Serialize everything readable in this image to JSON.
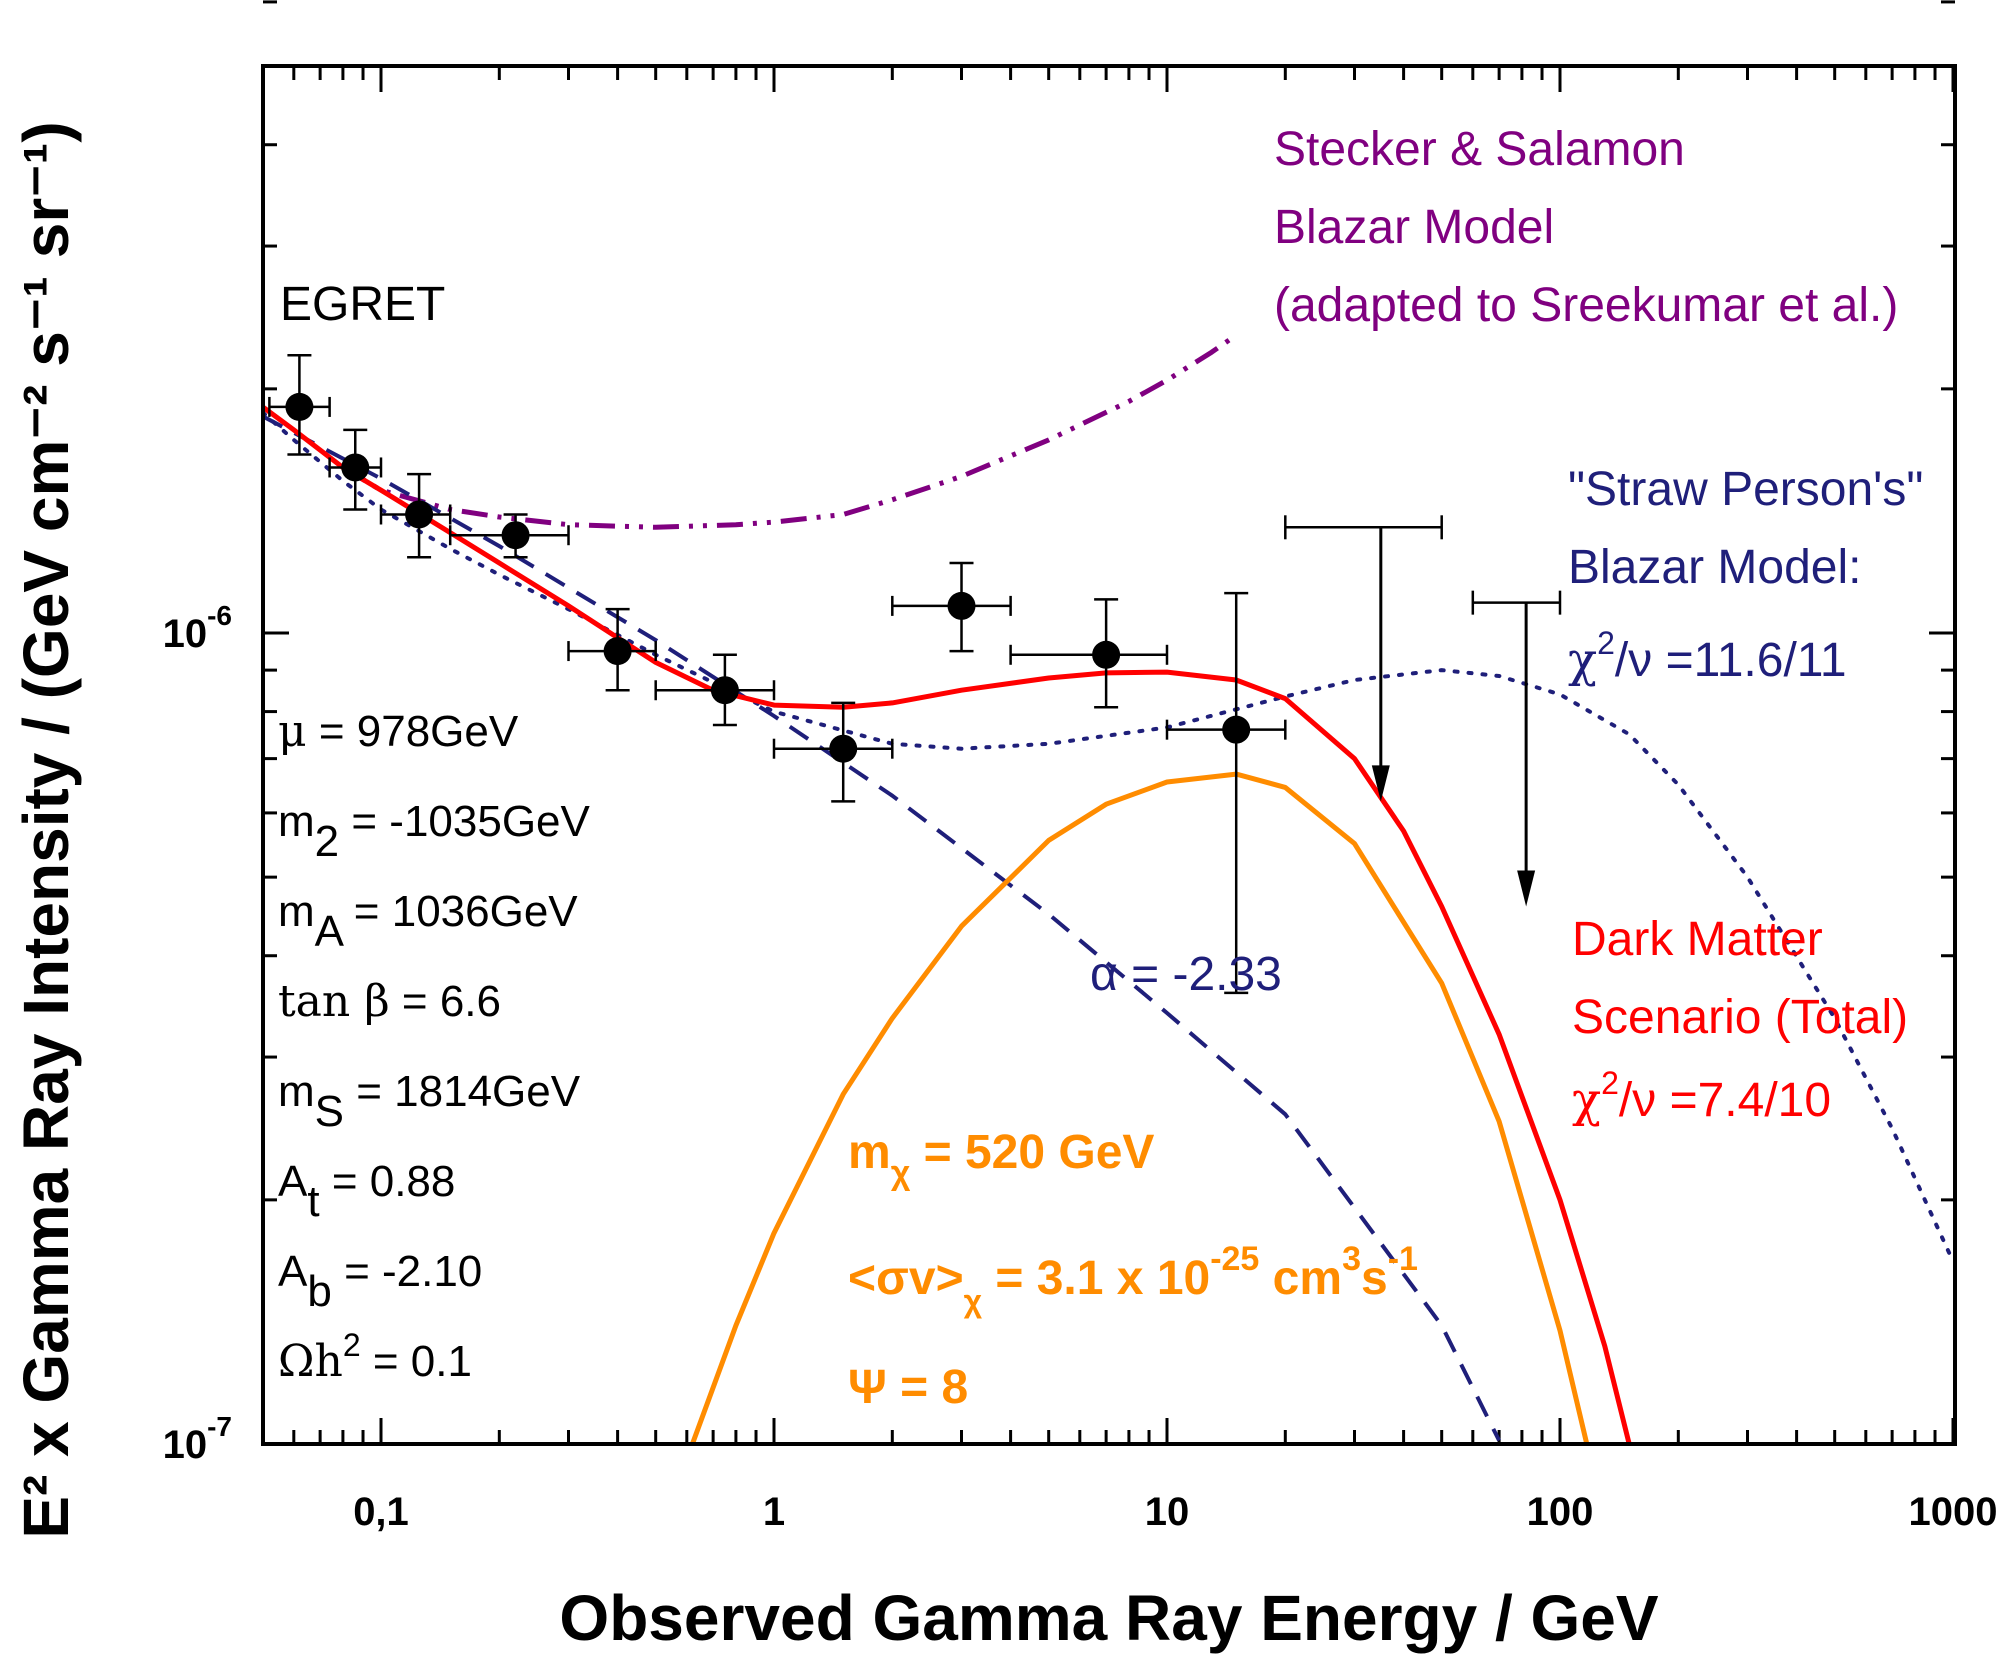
{
  "chart_data": {
    "type": "line",
    "xlabel": "Observed Gamma Ray Energy / GeV",
    "ylabel": "E² x Gamma Ray Intensity  /  (GeV cm⁻² s⁻¹ sr⁻¹)",
    "x_scale": "log",
    "y_scale": "log",
    "xlim": [
      0.05,
      1000
    ],
    "ylim": [
      1e-07,
      7e-06
    ],
    "x_tick_labels": [
      {
        "value": 0.1,
        "label": "0,1"
      },
      {
        "value": 1,
        "label": "1"
      },
      {
        "value": 10,
        "label": "10"
      },
      {
        "value": 100,
        "label": "100"
      },
      {
        "value": 1000,
        "label": "1000"
      }
    ],
    "y_tick_labels": [
      {
        "value": 1e-07,
        "base": "10",
        "exp": "-7"
      },
      {
        "value": 1e-06,
        "base": "10",
        "exp": "-6"
      }
    ],
    "series": [
      {
        "name": "EGRET",
        "kind": "points",
        "color": "#000000",
        "points": [
          {
            "x": 0.062,
            "y": 1.9e-06,
            "xlo": 0.052,
            "xhi": 0.074,
            "ylo": 1.66e-06,
            "yhi": 2.2e-06
          },
          {
            "x": 0.086,
            "y": 1.6e-06,
            "xlo": 0.074,
            "xhi": 0.1,
            "ylo": 1.42e-06,
            "yhi": 1.78e-06
          },
          {
            "x": 0.125,
            "y": 1.4e-06,
            "xlo": 0.1,
            "xhi": 0.15,
            "ylo": 1.24e-06,
            "yhi": 1.57e-06
          },
          {
            "x": 0.22,
            "y": 1.32e-06,
            "xlo": 0.15,
            "xhi": 0.3,
            "ylo": 1.24e-06,
            "yhi": 1.4e-06
          },
          {
            "x": 0.4,
            "y": 9.5e-07,
            "xlo": 0.3,
            "xhi": 0.5,
            "ylo": 8.5e-07,
            "yhi": 1.07e-06
          },
          {
            "x": 0.75,
            "y": 8.5e-07,
            "xlo": 0.5,
            "xhi": 1.0,
            "ylo": 7.7e-07,
            "yhi": 9.4e-07
          },
          {
            "x": 1.5,
            "y": 7.2e-07,
            "xlo": 1.0,
            "xhi": 2.0,
            "ylo": 6.2e-07,
            "yhi": 8.2e-07
          },
          {
            "x": 3.0,
            "y": 1.08e-06,
            "xlo": 2.0,
            "xhi": 4.0,
            "ylo": 9.5e-07,
            "yhi": 1.22e-06
          },
          {
            "x": 7.0,
            "y": 9.4e-07,
            "xlo": 4.0,
            "xhi": 10.0,
            "ylo": 8.1e-07,
            "yhi": 1.1e-06
          },
          {
            "x": 15.0,
            "y": 7.6e-07,
            "xlo": 10.0,
            "xhi": 20.0,
            "ylo": 3.6e-07,
            "yhi": 1.12e-06
          }
        ],
        "upper_limits": [
          {
            "x": 35.0,
            "y": 1.35e-06,
            "xlo": 20.0,
            "xhi": 50.0,
            "arrow_to": 6.2e-07
          },
          {
            "x": 82.0,
            "y": 1.09e-06,
            "xlo": 60.0,
            "xhi": 100.0,
            "arrow_to": 4.6e-07
          }
        ]
      },
      {
        "name": "Stecker & Salamon Blazar Model",
        "kind": "line",
        "style": "dash-dot-dot",
        "color": "#800080",
        "x": [
          0.08,
          0.1,
          0.15,
          0.2,
          0.3,
          0.5,
          0.8,
          1.0,
          1.5,
          2.0,
          3.0,
          5.0,
          8.0,
          10.0,
          13.0,
          15.0
        ],
        "y": [
          1.6e-06,
          1.5e-06,
          1.42e-06,
          1.39e-06,
          1.36e-06,
          1.35e-06,
          1.36e-06,
          1.37e-06,
          1.4e-06,
          1.46e-06,
          1.56e-06,
          1.73e-06,
          1.93e-06,
          2.05e-06,
          2.22e-06,
          2.33e-06
        ]
      },
      {
        "name": "\"Straw Person's\" Blazar Model",
        "kind": "line",
        "style": "dotted",
        "color": "#1f1f7a",
        "x": [
          0.05,
          0.06,
          0.08,
          0.1,
          0.15,
          0.2,
          0.3,
          0.5,
          1.0,
          2.0,
          3.0,
          5.0,
          10.0,
          20.0,
          30.0,
          50.0,
          70.0,
          100.0,
          150.0,
          200.0,
          300.0,
          500.0,
          700.0,
          1000.0
        ],
        "y": [
          1.87e-06,
          1.73e-06,
          1.54e-06,
          1.42e-06,
          1.27e-06,
          1.18e-06,
          1.07e-06,
          9.4e-07,
          8e-07,
          7.3e-07,
          7.2e-07,
          7.3e-07,
          7.65e-07,
          8.35e-07,
          8.75e-07,
          9e-07,
          8.85e-07,
          8.4e-07,
          7.5e-07,
          6.5e-07,
          5e-07,
          3.35e-07,
          2.45e-07,
          1.68e-07
        ]
      },
      {
        "name": "α = -2.33",
        "kind": "line",
        "style": "dashed",
        "color": "#1f1f7a",
        "x": [
          0.05,
          0.1,
          0.2,
          0.5,
          1.0,
          2.0,
          5.0,
          10.0,
          20.0,
          50.0,
          70.0
        ],
        "y": [
          1.85e-06,
          1.55e-06,
          1.28e-06,
          9.8e-07,
          7.9e-07,
          6.3e-07,
          4.5e-07,
          3.4e-07,
          2.55e-07,
          1.4e-07,
          1.01e-07
        ]
      },
      {
        "name": "Dark Matter (mχ = 520 GeV)",
        "kind": "line",
        "style": "solid",
        "color": "#ff8c00",
        "x": [
          0.62,
          0.8,
          1.0,
          1.5,
          2.0,
          3.0,
          5.0,
          7.0,
          10.0,
          15.0,
          20.0,
          30.0,
          50.0,
          70.0,
          100.0,
          117.0
        ],
        "y": [
          1e-07,
          1.4e-07,
          1.82e-07,
          2.7e-07,
          3.35e-07,
          4.35e-07,
          5.55e-07,
          6.15e-07,
          6.55e-07,
          6.7e-07,
          6.45e-07,
          5.5e-07,
          3.7e-07,
          2.5e-07,
          1.38e-07,
          1e-07
        ]
      },
      {
        "name": "Dark Matter Scenario (Total)",
        "kind": "line",
        "style": "solid",
        "color": "#ff0000",
        "x": [
          0.05,
          0.06,
          0.08,
          0.1,
          0.15,
          0.2,
          0.3,
          0.5,
          0.7,
          1.0,
          1.5,
          2.0,
          3.0,
          5.0,
          7.0,
          10.0,
          15.0,
          20.0,
          30.0,
          40.0,
          50.0,
          70.0,
          100.0,
          130.0,
          150.0
        ],
        "y": [
          1.9e-06,
          1.78e-06,
          1.6e-06,
          1.5e-06,
          1.33e-06,
          1.22e-06,
          1.08e-06,
          9.2e-07,
          8.5e-07,
          8.15e-07,
          8.1e-07,
          8.2e-07,
          8.5e-07,
          8.8e-07,
          8.93e-07,
          8.95e-07,
          8.75e-07,
          8.3e-07,
          7e-07,
          5.7e-07,
          4.6e-07,
          3.2e-07,
          2e-07,
          1.32e-07,
          1e-07
        ]
      }
    ],
    "annotations": {
      "egret": "EGRET",
      "stecker_1": "Stecker & Salamon",
      "stecker_2": "Blazar Model",
      "stecker_3": "(adapted to Sreekumar et al.)",
      "straw_1": "\"Straw Person's\"",
      "straw_2": "Blazar Model:",
      "straw_chi_sym": "χ",
      "straw_chi_exp": "2",
      "straw_chi_rest": "/ν =11.6/11",
      "dm_1": "Dark Matter",
      "dm_2": "Scenario (Total)",
      "dm_chi_sym": "χ",
      "dm_chi_exp": "2",
      "dm_chi_rest": "/ν =7.4/10",
      "alpha": "α = -2.33",
      "mchi_m": "m",
      "mchi_sub": "χ",
      "mchi_rest": " = 520 GeV",
      "sigmav_a": "<σv>",
      "sigmav_sub": "χ",
      "sigmav_b": " = 3.1 x 10",
      "sigmav_exp1": "-25",
      "sigmav_c": " cm",
      "sigmav_exp2": "3",
      "sigmav_d": "s",
      "sigmav_exp3": "-1",
      "psi": "Ψ = 8"
    },
    "parameters": [
      {
        "sym": "μ",
        "sub": "",
        "sup": "",
        "rest": " = 978GeV"
      },
      {
        "sym": "m",
        "sub": "2",
        "sup": "",
        "rest": " = -1035GeV"
      },
      {
        "sym": "m",
        "sub": "A",
        "sup": "",
        "rest": " = 1036GeV"
      },
      {
        "sym": "tan β",
        "sub": "",
        "sup": "",
        "rest": " = 6.6"
      },
      {
        "sym": "m",
        "sub": "S",
        "sup": "",
        "rest": " = 1814GeV"
      },
      {
        "sym": "A",
        "sub": "t",
        "sup": "",
        "rest": " = 0.88"
      },
      {
        "sym": "A",
        "sub": "b",
        "sup": "",
        "rest": " = -2.10"
      },
      {
        "sym": "Ωh",
        "sub": "",
        "sup": "2",
        "rest": " = 0.1"
      }
    ]
  }
}
